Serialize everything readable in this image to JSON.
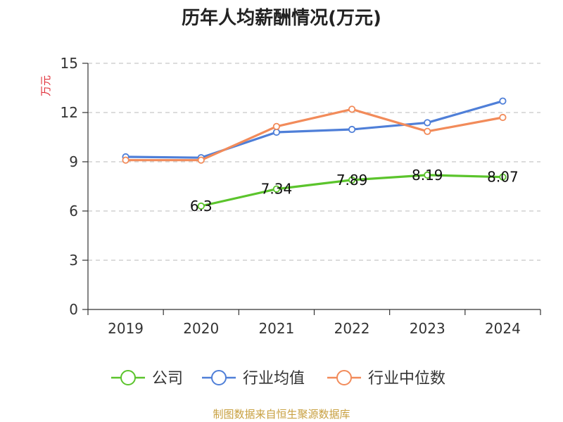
{
  "chart_data": {
    "type": "line",
    "title": "历年人均薪酬情况(万元)",
    "ylabel": "万元",
    "xlabel": "",
    "categories": [
      "2019",
      "2020",
      "2021",
      "2022",
      "2023",
      "2024"
    ],
    "ylim": [
      0,
      15
    ],
    "yticks": [
      0,
      3,
      6,
      9,
      12,
      15
    ],
    "grid": true,
    "legend_position": "bottom",
    "series": [
      {
        "name": "公司",
        "color": "#5bc42c",
        "values": [
          null,
          6.3,
          7.34,
          7.89,
          8.19,
          8.07
        ],
        "labels": [
          "",
          "6.3",
          "7.34",
          "7.89",
          "8.19",
          "8.07"
        ]
      },
      {
        "name": "行业均值",
        "color": "#4f7fd8",
        "values": [
          9.3,
          9.25,
          10.8,
          10.97,
          11.38,
          12.7
        ]
      },
      {
        "name": "行业中位数",
        "color": "#f28b5a",
        "values": [
          9.1,
          9.1,
          11.15,
          12.2,
          10.85,
          11.7
        ]
      }
    ]
  },
  "footer": {
    "source": "制图数据来自恒生聚源数据库"
  }
}
